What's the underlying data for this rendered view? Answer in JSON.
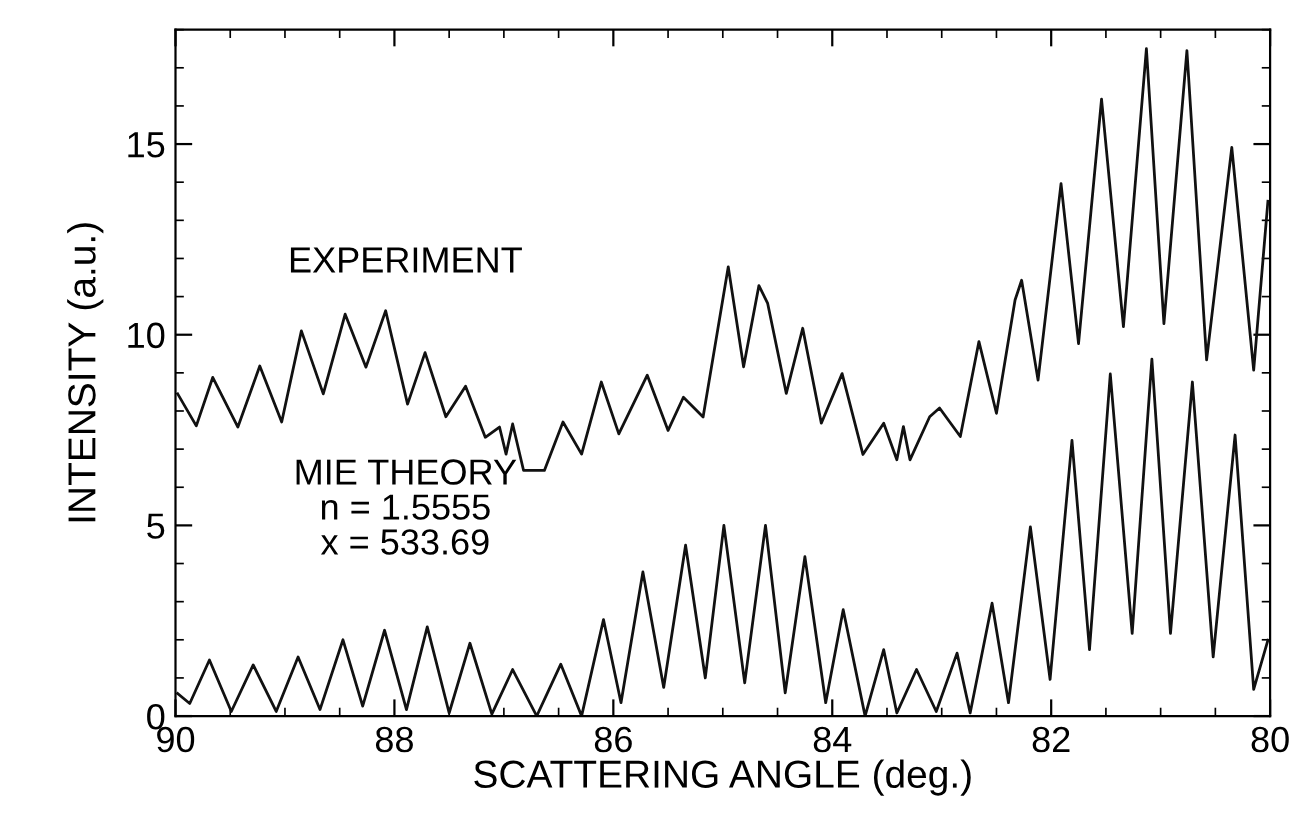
{
  "chart_data": {
    "type": "line",
    "xlabel": "SCATTERING ANGLE (deg.)",
    "ylabel": "INTENSITY (a.u.)",
    "xlim": [
      90,
      80
    ],
    "ylim": [
      0,
      18
    ],
    "xticks": [
      90,
      88,
      86,
      84,
      82,
      80
    ],
    "yticks": [
      0,
      5,
      10,
      15
    ],
    "grid": false,
    "marker": "none",
    "line_style": "solid",
    "annotations": [
      "EXPERIMENT",
      "MIE THEORY\nn = 1.5555\nx = 533.69"
    ],
    "series": [
      {
        "color": "#111111",
        "x": [
          89.98,
          89.81,
          89.66,
          89.43,
          89.23,
          89.03,
          88.85,
          88.65,
          88.45,
          88.26,
          88.08,
          87.88,
          87.72,
          87.53,
          87.35,
          87.17,
          87.04,
          86.98,
          86.92,
          86.82,
          86.63,
          86.46,
          86.29,
          86.11,
          85.95,
          85.69,
          85.5,
          85.36,
          85.18,
          84.95,
          84.81,
          84.67,
          84.59,
          84.42,
          84.27,
          84.1,
          83.91,
          83.72,
          83.53,
          83.41,
          83.35,
          83.29,
          83.11,
          83.02,
          82.83,
          82.66,
          82.5,
          82.33,
          82.27,
          82.12,
          81.91,
          81.75,
          81.54,
          81.34,
          81.13,
          80.97,
          80.76,
          80.58,
          80.35,
          80.15,
          80.02
        ],
        "values": [
          8.45,
          7.61,
          8.88,
          7.58,
          9.18,
          7.71,
          10.1,
          8.45,
          10.54,
          9.15,
          10.63,
          8.18,
          9.53,
          7.85,
          8.65,
          7.31,
          7.58,
          6.87,
          7.66,
          6.44,
          6.44,
          7.71,
          6.87,
          8.76,
          7.4,
          8.94,
          7.49,
          8.36,
          7.84,
          11.78,
          9.16,
          11.29,
          10.82,
          8.46,
          10.17,
          7.68,
          8.98,
          6.86,
          7.68,
          6.72,
          7.59,
          6.72,
          7.85,
          8.08,
          7.33,
          9.82,
          7.94,
          10.91,
          11.43,
          8.81,
          13.96,
          9.77,
          16.18,
          10.21,
          17.5,
          10.29,
          17.45,
          9.34,
          14.91,
          9.07,
          13.5
        ]
      },
      {
        "color": "#111111",
        "x": [
          89.98,
          89.87,
          89.69,
          89.49,
          89.29,
          89.08,
          88.88,
          88.68,
          88.47,
          88.29,
          88.09,
          87.89,
          87.7,
          87.5,
          87.31,
          87.11,
          86.92,
          86.7,
          86.48,
          86.29,
          86.09,
          85.93,
          85.73,
          85.54,
          85.34,
          85.16,
          84.99,
          84.8,
          84.61,
          84.43,
          84.25,
          84.06,
          83.9,
          83.7,
          83.53,
          83.41,
          83.23,
          83.05,
          82.86,
          82.74,
          82.54,
          82.39,
          82.19,
          82.01,
          81.81,
          81.65,
          81.46,
          81.26,
          81.08,
          80.91,
          80.71,
          80.52,
          80.32,
          80.15,
          80.02
        ],
        "values": [
          0.59,
          0.33,
          1.47,
          0.12,
          1.34,
          0.12,
          1.55,
          0.17,
          2.0,
          0.26,
          2.25,
          0.17,
          2.34,
          0.08,
          1.91,
          0.05,
          1.22,
          0,
          1.36,
          0,
          2.53,
          0.35,
          3.78,
          0.75,
          4.48,
          1.0,
          5.0,
          0.87,
          5.0,
          0.61,
          4.18,
          0.35,
          2.79,
          0,
          1.74,
          0.08,
          1.22,
          0.12,
          1.65,
          0.08,
          2.96,
          0.35,
          4.96,
          0.96,
          7.23,
          1.74,
          8.97,
          2.17,
          9.36,
          2.17,
          8.76,
          1.55,
          7.37,
          0.7,
          1.99
        ]
      }
    ]
  }
}
